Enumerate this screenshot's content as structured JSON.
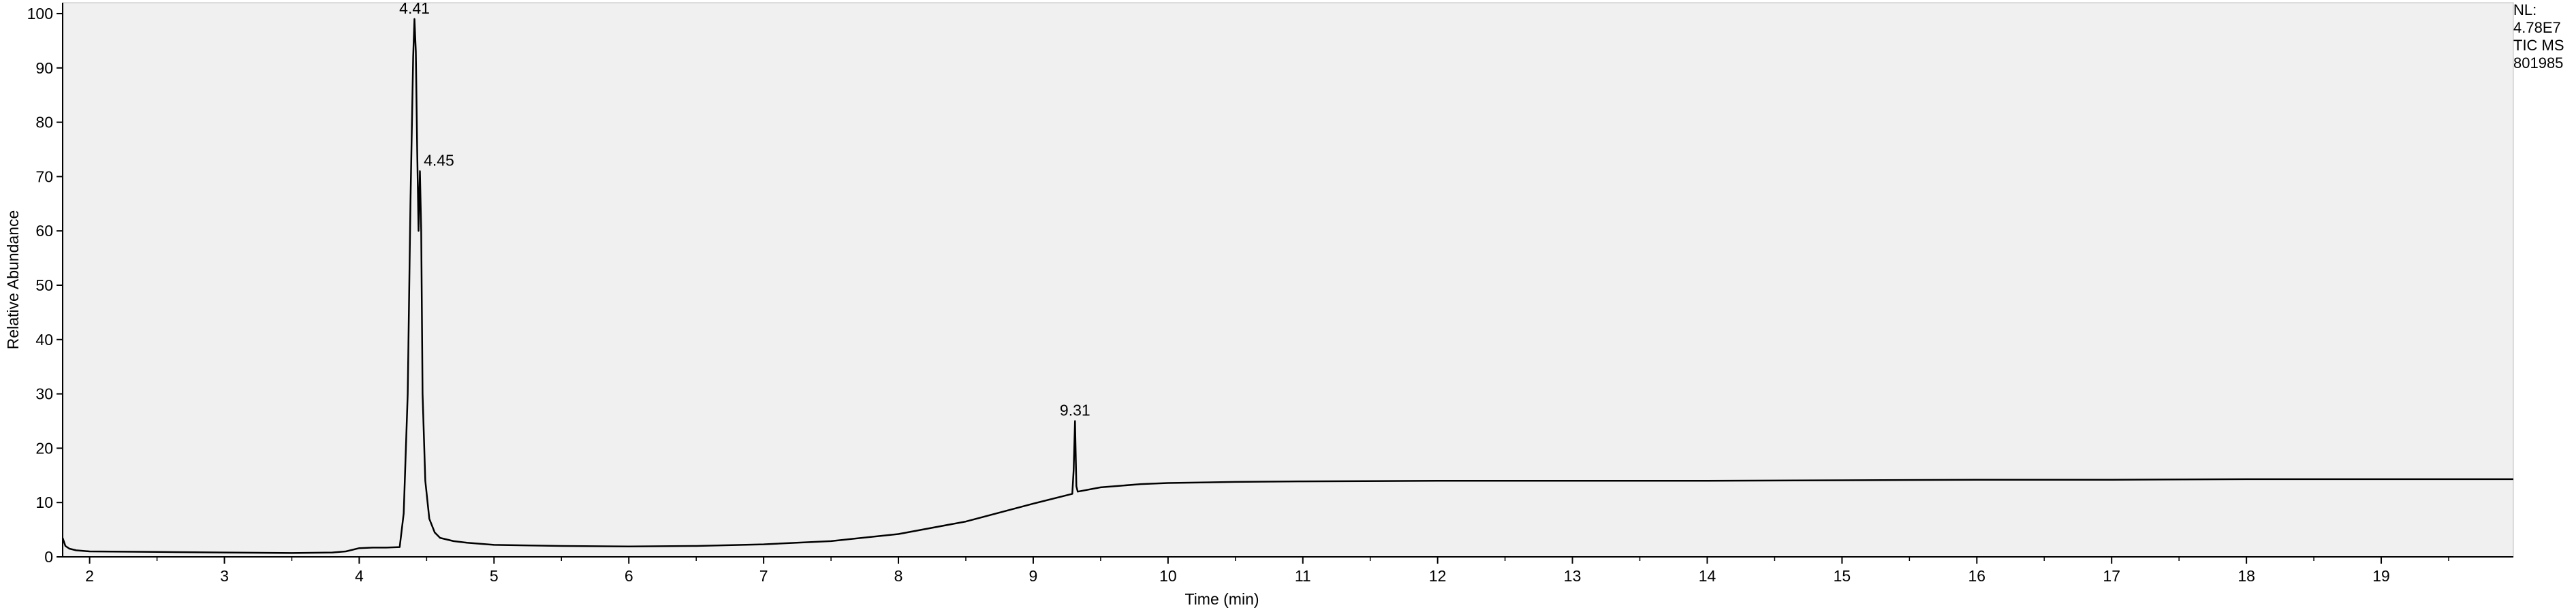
{
  "chart_data": {
    "type": "line",
    "title": "",
    "xlabel": "Time (min)",
    "ylabel": "Relative Abundance",
    "xlim": [
      1.8,
      19.98
    ],
    "ylim": [
      0,
      102
    ],
    "x_ticks": [
      2,
      3,
      4,
      5,
      6,
      7,
      8,
      9,
      10,
      11,
      12,
      13,
      14,
      15,
      16,
      17,
      18,
      19
    ],
    "y_ticks": [
      0,
      10,
      20,
      30,
      40,
      50,
      60,
      70,
      80,
      90,
      100
    ],
    "grid": false,
    "legend": "none",
    "colors": {
      "plot_bg": "#f0f0f0",
      "trace": "#000000",
      "axis": "#000000"
    },
    "series": [
      {
        "x": [
          1.8,
          1.82,
          1.85,
          1.9,
          2.0,
          2.5,
          3.0,
          3.5,
          3.8,
          3.9,
          4.0,
          4.1,
          4.2,
          4.3,
          4.33,
          4.36,
          4.38,
          4.4,
          4.41,
          4.42,
          4.43,
          4.44,
          4.45,
          4.46,
          4.47,
          4.49,
          4.52,
          4.56,
          4.6,
          4.7,
          4.8,
          5.0,
          5.5,
          6.0,
          6.5,
          7.0,
          7.5,
          8.0,
          8.5,
          9.0,
          9.29,
          9.3,
          9.31,
          9.32,
          9.33,
          9.5,
          9.8,
          10.0,
          10.5,
          11.0,
          12.0,
          13.0,
          14.0,
          15.0,
          16.0,
          17.0,
          18.0,
          19.0,
          19.98
        ],
        "y": [
          3.5,
          2.0,
          1.5,
          1.2,
          1.0,
          0.9,
          0.8,
          0.7,
          0.8,
          1.0,
          1.6,
          1.7,
          1.7,
          1.8,
          8,
          30,
          65,
          92,
          99,
          93,
          75,
          60,
          71,
          60,
          30,
          14,
          7,
          4.5,
          3.5,
          2.9,
          2.6,
          2.2,
          2.0,
          1.9,
          2.0,
          2.3,
          2.9,
          4.2,
          6.5,
          9.8,
          11.6,
          16,
          25,
          13,
          12.0,
          12.8,
          13.4,
          13.6,
          13.8,
          13.9,
          14.0,
          14.0,
          14.0,
          14.1,
          14.2,
          14.2,
          14.3,
          14.3,
          14.3
        ]
      }
    ],
    "annotations": [
      {
        "label": "4.41",
        "x": 4.41,
        "y": 99
      },
      {
        "label": "4.45",
        "x": 4.45,
        "y": 71
      },
      {
        "label": "9.31",
        "x": 9.31,
        "y": 25
      }
    ],
    "nl_info": [
      "NL:",
      "4.78E7",
      "TIC  MS",
      "801985"
    ]
  }
}
